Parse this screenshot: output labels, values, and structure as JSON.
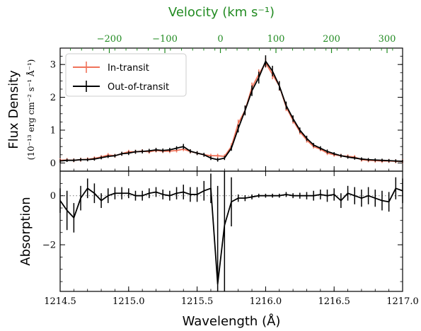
{
  "chart_data": [
    {
      "type": "line",
      "panel": "flux",
      "ylabel": "Flux Density",
      "ylabel_units": "(10⁻¹³ erg cm⁻² s⁻¹ Å⁻¹)",
      "top_xlabel": "Velocity (km s⁻¹)",
      "xlim": [
        1214.5,
        1217.0
      ],
      "ylim": [
        -0.25,
        3.5
      ],
      "yticks": [
        0,
        1,
        2,
        3
      ],
      "top_ticks": [
        -200,
        -100,
        0,
        100,
        200,
        300
      ],
      "top_tick_labels": [
        "−200",
        "−100",
        "0",
        "100",
        "200",
        "300"
      ],
      "top_axis_zero_wavelength": 1215.67,
      "legend_position": "upper-left",
      "series": [
        {
          "name": "In-transit",
          "color": "#f0735a",
          "x": [
            1214.5,
            1214.55,
            1214.6,
            1214.65,
            1214.7,
            1214.75,
            1214.8,
            1214.85,
            1214.9,
            1214.95,
            1215.0,
            1215.05,
            1215.1,
            1215.15,
            1215.2,
            1215.25,
            1215.3,
            1215.35,
            1215.4,
            1215.45,
            1215.5,
            1215.55,
            1215.6,
            1215.65,
            1215.7,
            1215.75,
            1215.8,
            1215.85,
            1215.9,
            1215.95,
            1216.0,
            1216.05,
            1216.1,
            1216.15,
            1216.2,
            1216.25,
            1216.3,
            1216.35,
            1216.4,
            1216.45,
            1216.5,
            1216.55,
            1216.6,
            1216.65,
            1216.7,
            1216.75,
            1216.8,
            1216.85,
            1216.9,
            1216.95,
            1217.0
          ],
          "y": [
            0.08,
            0.09,
            0.08,
            0.1,
            0.11,
            0.14,
            0.18,
            0.24,
            0.22,
            0.28,
            0.34,
            0.34,
            0.36,
            0.34,
            0.38,
            0.36,
            0.36,
            0.38,
            0.42,
            0.35,
            0.3,
            0.25,
            0.22,
            0.22,
            0.2,
            0.5,
            1.2,
            1.6,
            2.3,
            2.7,
            3.05,
            2.7,
            2.35,
            1.7,
            1.3,
            0.95,
            0.7,
            0.5,
            0.42,
            0.3,
            0.25,
            0.22,
            0.2,
            0.18,
            0.1,
            0.08,
            0.07,
            0.06,
            0.06,
            0.05,
            0.05
          ],
          "yerr": [
            0.06,
            0.06,
            0.06,
            0.06,
            0.06,
            0.06,
            0.06,
            0.06,
            0.06,
            0.06,
            0.06,
            0.06,
            0.06,
            0.06,
            0.06,
            0.06,
            0.06,
            0.06,
            0.06,
            0.06,
            0.06,
            0.06,
            0.06,
            0.06,
            0.06,
            0.1,
            0.12,
            0.15,
            0.15,
            0.15,
            0.15,
            0.15,
            0.15,
            0.12,
            0.1,
            0.08,
            0.08,
            0.06,
            0.06,
            0.06,
            0.06,
            0.06,
            0.06,
            0.06,
            0.06,
            0.06,
            0.06,
            0.06,
            0.06,
            0.06,
            0.06
          ]
        },
        {
          "name": "Out-of-transit",
          "color": "#000000",
          "x": [
            1214.5,
            1214.55,
            1214.6,
            1214.65,
            1214.7,
            1214.75,
            1214.8,
            1214.85,
            1214.9,
            1214.95,
            1215.0,
            1215.05,
            1215.1,
            1215.15,
            1215.2,
            1215.25,
            1215.3,
            1215.35,
            1215.4,
            1215.45,
            1215.5,
            1215.55,
            1215.6,
            1215.65,
            1215.7,
            1215.75,
            1215.8,
            1215.85,
            1215.9,
            1215.95,
            1216.0,
            1216.05,
            1216.1,
            1216.15,
            1216.2,
            1216.25,
            1216.3,
            1216.35,
            1216.4,
            1216.45,
            1216.5,
            1216.55,
            1216.6,
            1216.65,
            1216.7,
            1216.75,
            1216.8,
            1216.85,
            1216.9,
            1216.95,
            1217.0
          ],
          "y": [
            0.06,
            0.08,
            0.08,
            0.1,
            0.1,
            0.12,
            0.16,
            0.2,
            0.22,
            0.28,
            0.3,
            0.34,
            0.35,
            0.37,
            0.4,
            0.38,
            0.4,
            0.45,
            0.5,
            0.36,
            0.3,
            0.25,
            0.15,
            0.1,
            0.15,
            0.45,
            1.05,
            1.6,
            2.2,
            2.6,
            3.1,
            2.8,
            2.35,
            1.75,
            1.35,
            1.0,
            0.75,
            0.55,
            0.45,
            0.35,
            0.28,
            0.22,
            0.18,
            0.15,
            0.12,
            0.1,
            0.09,
            0.08,
            0.07,
            0.06,
            0.05
          ],
          "yerr": [
            0.05,
            0.05,
            0.05,
            0.05,
            0.05,
            0.05,
            0.05,
            0.05,
            0.05,
            0.06,
            0.06,
            0.06,
            0.06,
            0.06,
            0.06,
            0.06,
            0.06,
            0.06,
            0.08,
            0.06,
            0.06,
            0.06,
            0.06,
            0.06,
            0.06,
            0.08,
            0.12,
            0.15,
            0.16,
            0.18,
            0.18,
            0.16,
            0.14,
            0.12,
            0.1,
            0.08,
            0.08,
            0.06,
            0.06,
            0.06,
            0.05,
            0.05,
            0.05,
            0.05,
            0.05,
            0.05,
            0.05,
            0.05,
            0.05,
            0.05,
            0.05
          ]
        }
      ]
    },
    {
      "type": "line",
      "panel": "absorption",
      "ylabel": "Absorption",
      "xlabel": "Wavelength (Å)",
      "xlim": [
        1214.5,
        1217.0
      ],
      "ylim": [
        -3.9,
        1.0
      ],
      "yticks": [
        -2,
        0
      ],
      "yticks_labels": [
        "−2",
        "0"
      ],
      "xticks": [
        1214.5,
        1215.0,
        1215.5,
        1216.0,
        1216.5,
        1217.0
      ],
      "xtick_labels": [
        "1214.5",
        "1215.0",
        "1215.5",
        "1216.0",
        "1216.5",
        "1217.0"
      ],
      "reference_line": 0,
      "series": [
        {
          "name": "",
          "color": "#000000",
          "x": [
            1214.5,
            1214.55,
            1214.6,
            1214.65,
            1214.7,
            1214.75,
            1214.8,
            1214.85,
            1214.9,
            1214.95,
            1215.0,
            1215.05,
            1215.1,
            1215.15,
            1215.2,
            1215.25,
            1215.3,
            1215.35,
            1215.4,
            1215.45,
            1215.5,
            1215.55,
            1215.6,
            1215.65,
            1215.7,
            1215.75,
            1215.8,
            1215.85,
            1215.9,
            1215.95,
            1216.0,
            1216.05,
            1216.1,
            1216.15,
            1216.2,
            1216.25,
            1216.3,
            1216.35,
            1216.4,
            1216.45,
            1216.5,
            1216.55,
            1216.6,
            1216.65,
            1216.7,
            1216.75,
            1216.8,
            1216.85,
            1216.9,
            1216.95,
            1217.0
          ],
          "y": [
            -0.2,
            -0.6,
            -0.9,
            -0.1,
            0.3,
            0.1,
            -0.2,
            0.0,
            0.1,
            0.1,
            0.1,
            0.0,
            0.0,
            0.1,
            0.15,
            0.05,
            0.0,
            0.1,
            0.15,
            0.05,
            0.05,
            0.2,
            0.3,
            -3.6,
            -1.2,
            -0.25,
            -0.1,
            -0.1,
            -0.05,
            0.0,
            0.0,
            0.0,
            0.0,
            0.05,
            0.0,
            0.0,
            0.0,
            0.0,
            0.05,
            0.0,
            0.05,
            -0.2,
            0.1,
            0.0,
            -0.1,
            0.0,
            -0.1,
            -0.2,
            -0.25,
            0.3,
            0.2
          ],
          "yerr": [
            0.5,
            0.8,
            0.6,
            0.5,
            0.4,
            0.4,
            0.3,
            0.3,
            0.25,
            0.25,
            0.2,
            0.2,
            0.2,
            0.2,
            0.2,
            0.2,
            0.2,
            0.25,
            0.3,
            0.3,
            0.3,
            0.4,
            0.6,
            4.0,
            4.0,
            1.0,
            0.15,
            0.12,
            0.1,
            0.08,
            0.08,
            0.08,
            0.08,
            0.1,
            0.1,
            0.12,
            0.15,
            0.2,
            0.2,
            0.25,
            0.25,
            0.3,
            0.3,
            0.35,
            0.35,
            0.35,
            0.35,
            0.4,
            0.4,
            0.45,
            0.5
          ]
        }
      ]
    }
  ]
}
